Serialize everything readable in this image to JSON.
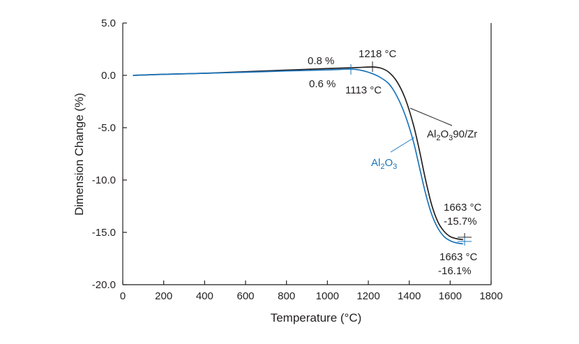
{
  "chart_data": {
    "type": "line",
    "xlabel": "Temperature (°C)",
    "ylabel": "Dimension Change (%)",
    "xlim": [
      0,
      1800
    ],
    "ylim": [
      -20,
      5
    ],
    "x_ticks": [
      0,
      200,
      400,
      600,
      800,
      1000,
      1200,
      1400,
      1600,
      1800
    ],
    "x_tick_labels": [
      "0",
      "200",
      "400",
      "600",
      "800",
      "1000",
      "1200",
      "1400",
      "1600",
      "1800"
    ],
    "y_ticks": [
      5,
      0,
      -5,
      -10,
      -15,
      -20
    ],
    "y_tick_labels": [
      "5.0",
      "0.0",
      "-5.0",
      "-10.0",
      "-15.0",
      "-20.0"
    ],
    "grid": false,
    "series": [
      {
        "name": "Al2O390/Zr",
        "color": "#231f20",
        "points": [
          [
            50,
            0
          ],
          [
            200,
            0.1
          ],
          [
            400,
            0.2
          ],
          [
            600,
            0.35
          ],
          [
            800,
            0.5
          ],
          [
            1000,
            0.65
          ],
          [
            1100,
            0.72
          ],
          [
            1150,
            0.75
          ],
          [
            1218,
            0.8
          ],
          [
            1260,
            0.7
          ],
          [
            1300,
            0.3
          ],
          [
            1340,
            -0.6
          ],
          [
            1380,
            -2.2
          ],
          [
            1420,
            -4.7
          ],
          [
            1450,
            -7.2
          ],
          [
            1480,
            -10.0
          ],
          [
            1510,
            -12.4
          ],
          [
            1540,
            -14.0
          ],
          [
            1570,
            -14.9
          ],
          [
            1600,
            -15.4
          ],
          [
            1630,
            -15.6
          ],
          [
            1663,
            -15.7
          ]
        ]
      },
      {
        "name": "Al2O3",
        "color": "#1b75bb",
        "points": [
          [
            50,
            0
          ],
          [
            200,
            0.1
          ],
          [
            400,
            0.2
          ],
          [
            600,
            0.3
          ],
          [
            800,
            0.42
          ],
          [
            1000,
            0.52
          ],
          [
            1113,
            0.6
          ],
          [
            1160,
            0.5
          ],
          [
            1200,
            0.3
          ],
          [
            1250,
            -0.1
          ],
          [
            1300,
            -0.8
          ],
          [
            1340,
            -2.0
          ],
          [
            1380,
            -3.8
          ],
          [
            1420,
            -6.3
          ],
          [
            1450,
            -8.8
          ],
          [
            1480,
            -11.3
          ],
          [
            1510,
            -13.3
          ],
          [
            1540,
            -14.6
          ],
          [
            1570,
            -15.4
          ],
          [
            1600,
            -15.8
          ],
          [
            1630,
            -16.0
          ],
          [
            1663,
            -16.1
          ]
        ]
      }
    ],
    "annotations": {
      "pct_08": "0.8 %",
      "temp_1218": "1218 °C",
      "pct_06": "0.6 %",
      "temp_1113": "1113 °C",
      "label_zr_a": "Al",
      "label_zr_sub1": "2",
      "label_zr_b": "O",
      "label_zr_sub2": "3",
      "label_zr_c": "90/Zr",
      "label_al_a": "Al",
      "label_al_sub1": "2",
      "label_al_b": "O",
      "label_al_sub2": "3",
      "end_zr_temp": "1663 °C",
      "end_zr_pct": "-15.7%",
      "end_al_temp": "1663 °C",
      "end_al_pct": "-16.1%"
    }
  }
}
